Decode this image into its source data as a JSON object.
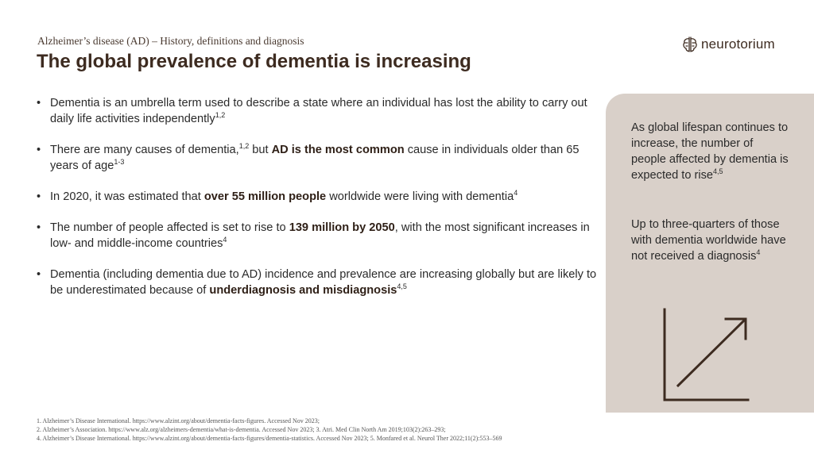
{
  "header": {
    "subtitle": "Alzheimer’s disease (AD) – History, definitions and diagnosis",
    "title": "The global prevalence of dementia is increasing"
  },
  "logo": {
    "text": "neurotorium",
    "icon": "neurotorium-logo-icon"
  },
  "bullets": [
    {
      "t1": "Dementia is an umbrella  term used to describe a state where an individual has lost the ability to carry out daily life activities independently",
      "s1": "1,2"
    },
    {
      "t1": "There are many  causes of dementia,",
      "s1": "1,2",
      "t2": " but ",
      "b1": "AD is the most common",
      "t3": " cause in individuals older than 65 years of age",
      "s2": "1-3"
    },
    {
      "t1": "In 2020, it was estimated that ",
      "b1": "over 55 million  people",
      "t2": " worldwide were living with dementia",
      "s1": "4"
    },
    {
      "t1": "The number  of people affected is set to rise to ",
      "b1": "139 million  by 2050",
      "t2": ", with the most significant increases in low- and middle-income  countries",
      "s1": "4"
    },
    {
      "t1": "Dementia (including dementia due to AD) incidence and prevalence are increasing globally but are likely to be underestimated  because of ",
      "b1": "underdiagnosis and misdiagnosis",
      "s1": "4,5"
    }
  ],
  "panel": {
    "p1": "As global lifespan continues to increase, the number of people affected by dementia  is expected to rise",
    "p1_sup": "4,5",
    "p2": "Up to three-quarters of those with dementia worldwide have not received a diagnosis",
    "p2_sup": "4",
    "icon": "trend-up-chart-icon"
  },
  "references": [
    "1. Alzheimer’s Disease International. https://www.alzint.org/about/dementia-facts-figures. Accessed Nov 2023;",
    "2. Alzheimer’s Association. https://www.alz.org/alzheimers-dementia/what-is-dementia. Accessed Nov 2023;  3. Atri. Med Clin North Am 2019;103(2):263–293;",
    "4. Alzheimer’s Disease International. https://www.alzint.org/about/dementia-facts-figures/dementia-statistics. Accessed Nov 2023;  5. Monfared et al. Neurol Ther 2022;11(2):553–569"
  ],
  "colors": {
    "title": "#3d2b20",
    "panel_background": "#d9d0c9",
    "icon_stroke": "#3d2b20"
  }
}
